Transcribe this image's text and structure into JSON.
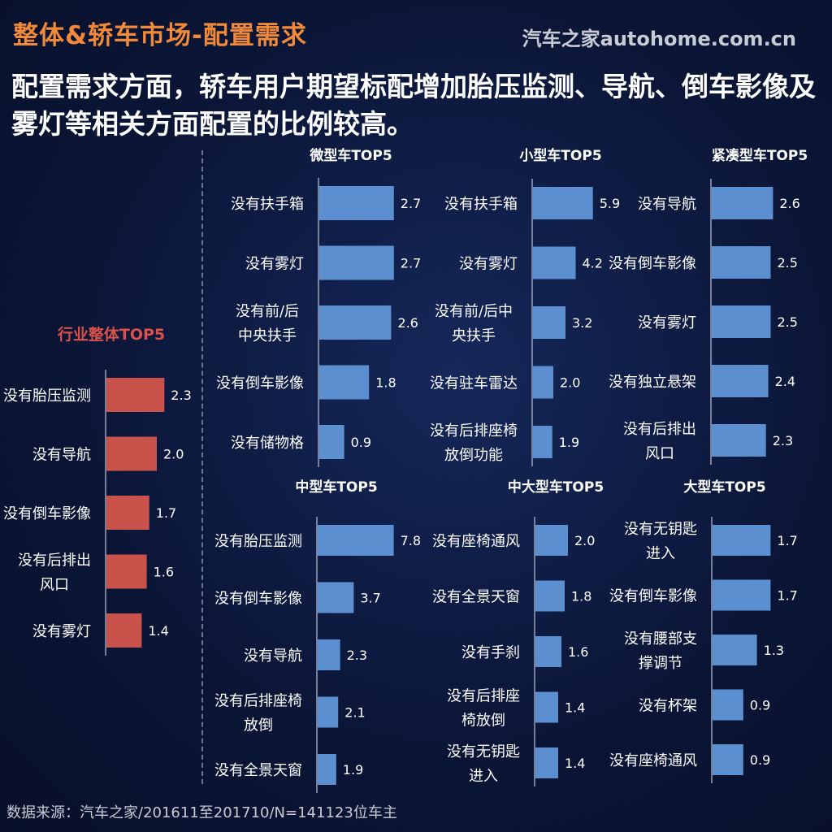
{
  "header": {
    "title": "整体&轿车市场-配置需求",
    "logo": "汽车之家autohome.com.cn",
    "subtitle": "配置需求方面，轿车用户期望标配增加胎压监测、导航、倒车影像及雾灯等相关方面配置的比例较高。"
  },
  "footer": {
    "source": "数据来源：汽车之家/201611至201710/N=141123位车主"
  },
  "colors": {
    "industry_bar": "#c9534b",
    "segment_bar": "#5b8fd0",
    "title_accent": "#f08a3a"
  },
  "chart_data": [
    {
      "type": "bar",
      "orientation": "horizontal",
      "title": "行业整体TOP5",
      "categories": [
        "没有胎压监测",
        "没有导航",
        "没有倒车影像",
        "没有后排出风口",
        "没有雾灯"
      ],
      "values": [
        2.3,
        2.0,
        1.7,
        1.6,
        1.4
      ],
      "value_labels": [
        "2.3",
        "2.0",
        "1.7",
        "1.6",
        "1.4"
      ]
    },
    {
      "type": "bar",
      "orientation": "horizontal",
      "title": "微型车TOP5",
      "categories": [
        "没有扶手箱",
        "没有雾灯",
        "没有前/后中央扶手",
        "没有倒车影像",
        "没有储物格"
      ],
      "values": [
        2.7,
        2.7,
        2.6,
        1.8,
        0.9
      ],
      "value_labels": [
        "2.7",
        "2.7",
        "2.6",
        "1.8",
        "0.9"
      ]
    },
    {
      "type": "bar",
      "orientation": "horizontal",
      "title": "小型车TOP5",
      "categories": [
        "没有扶手箱",
        "没有雾灯",
        "没有前/后中央扶手",
        "没有驻车雷达",
        "没有后排座椅放倒功能"
      ],
      "values": [
        5.9,
        4.2,
        3.2,
        2.0,
        1.9
      ],
      "value_labels": [
        "5.9",
        "4.2",
        "3.2",
        "2.0",
        "1.9"
      ]
    },
    {
      "type": "bar",
      "orientation": "horizontal",
      "title": "紧凑型车TOP5",
      "categories": [
        "没有导航",
        "没有倒车影像",
        "没有雾灯",
        "没有独立悬架",
        "没有后排出风口"
      ],
      "values": [
        2.6,
        2.5,
        2.5,
        2.4,
        2.3
      ],
      "value_labels": [
        "2.6",
        "2.5",
        "2.5",
        "2.4",
        "2.3"
      ]
    },
    {
      "type": "bar",
      "orientation": "horizontal",
      "title": "中型车TOP5",
      "categories": [
        "没有胎压监测",
        "没有倒车影像",
        "没有导航",
        "没有后排座椅放倒",
        "没有全景天窗"
      ],
      "values": [
        7.8,
        3.7,
        2.3,
        2.1,
        1.9
      ],
      "value_labels": [
        "7.8",
        "3.7",
        "2.3",
        "2.1",
        "1.9"
      ]
    },
    {
      "type": "bar",
      "orientation": "horizontal",
      "title": "中大型车TOP5",
      "categories": [
        "没有座椅通风",
        "没有全景天窗",
        "没有手刹",
        "没有后排座椅放倒",
        "没有无钥匙进入"
      ],
      "values": [
        2.0,
        1.8,
        1.6,
        1.4,
        1.4
      ],
      "value_labels": [
        "2.0",
        "1.8",
        "1.6",
        "1.4",
        "1.4"
      ]
    },
    {
      "type": "bar",
      "orientation": "horizontal",
      "title": "大型车TOP5",
      "categories": [
        "没有无钥匙进入",
        "没有倒车影像",
        "没有腰部支撑调节",
        "没有杯架",
        "没有座椅通风"
      ],
      "values": [
        1.7,
        1.7,
        1.3,
        0.9,
        0.9
      ],
      "value_labels": [
        "1.7",
        "1.7",
        "1.3",
        "0.9",
        "0.9"
      ]
    }
  ]
}
